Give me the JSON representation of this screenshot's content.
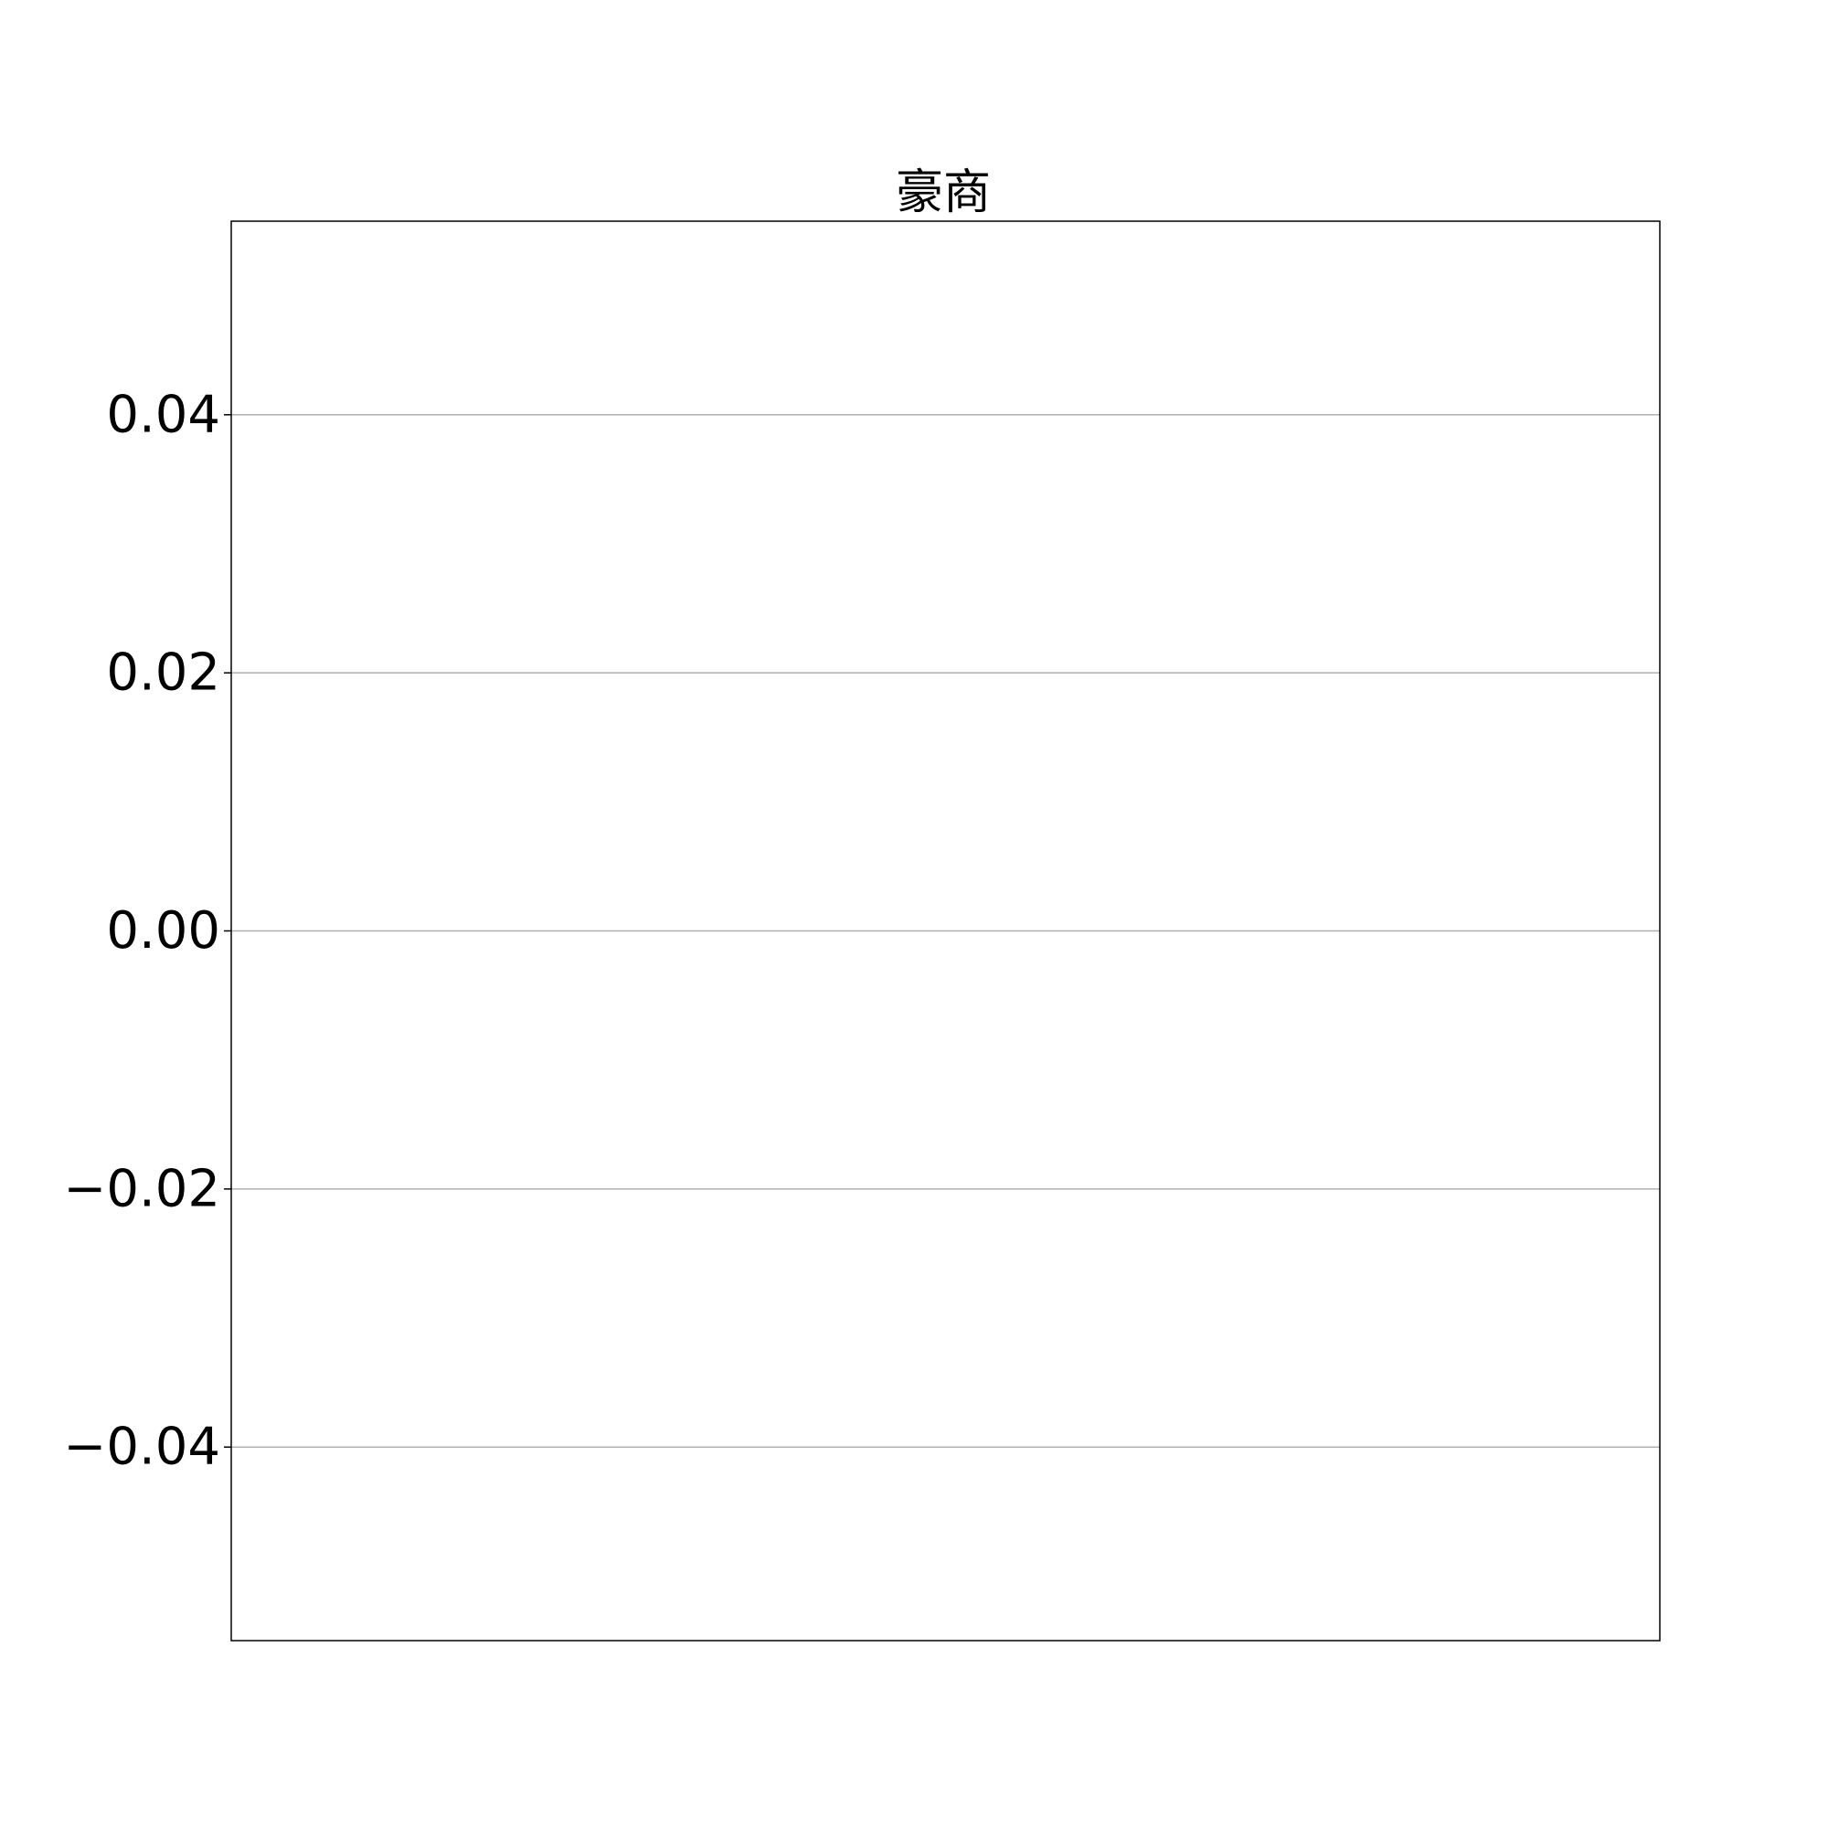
{
  "chart_data": {
    "type": "line",
    "title": "豪商",
    "xlabel": "",
    "ylabel": "",
    "ylim": [
      -0.055,
      0.055
    ],
    "yticks": [
      0.04,
      0.02,
      0.0,
      -0.02,
      -0.04
    ],
    "ytick_labels": [
      "0.04",
      "0.02",
      "0.00",
      "−0.02",
      "−0.04"
    ],
    "xticks": [],
    "grid": "horizontal",
    "series": [],
    "colors": {
      "grid": "#b0b0b0",
      "frame": "#000000",
      "text": "#000000",
      "background": "#ffffff"
    }
  }
}
